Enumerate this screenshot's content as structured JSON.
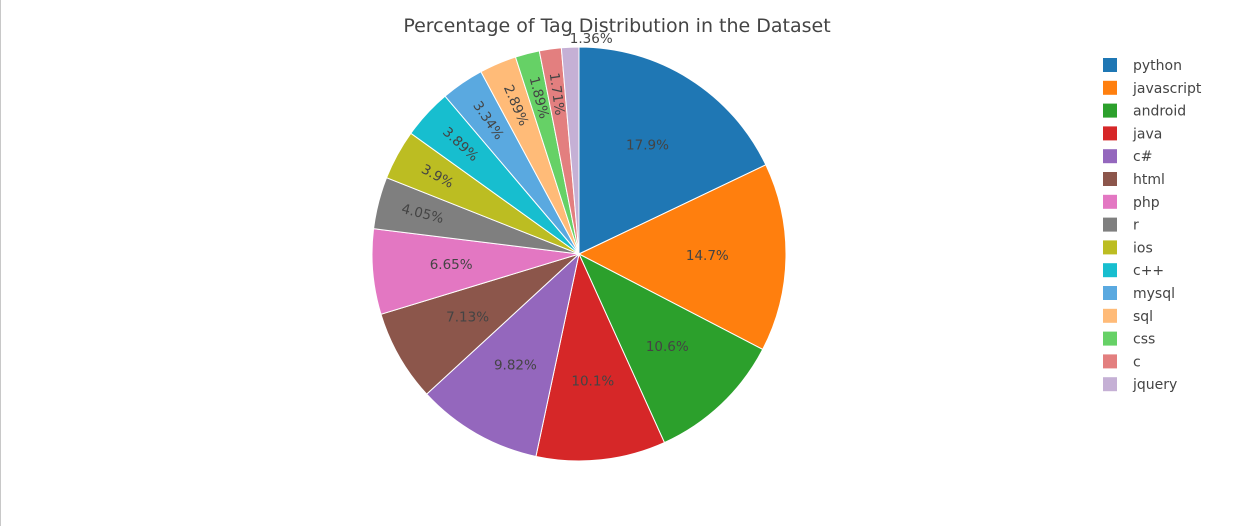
{
  "chart_data": {
    "type": "pie",
    "title": "Percentage of Tag Distribution in the Dataset",
    "slices": [
      {
        "label": "python",
        "value": 17.9,
        "text": "17.9%",
        "color": "#1f77b4"
      },
      {
        "label": "javascript",
        "value": 14.7,
        "text": "14.7%",
        "color": "#ff7f0e"
      },
      {
        "label": "android",
        "value": 10.6,
        "text": "10.6%",
        "color": "#2ca02c"
      },
      {
        "label": "java",
        "value": 10.1,
        "text": "10.1%",
        "color": "#d62728"
      },
      {
        "label": "c#",
        "value": 9.82,
        "text": "9.82%",
        "color": "#9467bd"
      },
      {
        "label": "html",
        "value": 7.13,
        "text": "7.13%",
        "color": "#8c564b"
      },
      {
        "label": "php",
        "value": 6.65,
        "text": "6.65%",
        "color": "#e377c2"
      },
      {
        "label": "r",
        "value": 4.05,
        "text": "4.05%",
        "color": "#7f7f7f"
      },
      {
        "label": "ios",
        "value": 3.9,
        "text": "3.9%",
        "color": "#bcbd22"
      },
      {
        "label": "c++",
        "value": 3.89,
        "text": "3.89%",
        "color": "#17becf"
      },
      {
        "label": "mysql",
        "value": 3.34,
        "text": "3.34%",
        "color": "#5aa9e0"
      },
      {
        "label": "sql",
        "value": 2.89,
        "text": "2.89%",
        "color": "#ffbb78"
      },
      {
        "label": "css",
        "value": 1.89,
        "text": "1.89%",
        "color": "#66d166"
      },
      {
        "label": "c",
        "value": 1.71,
        "text": "1.71%",
        "color": "#e37f7f"
      },
      {
        "label": "jquery",
        "value": 1.36,
        "text": "1.36%",
        "color": "#c5b0d5"
      }
    ],
    "direction": "clockwise",
    "legend_position": "right"
  }
}
